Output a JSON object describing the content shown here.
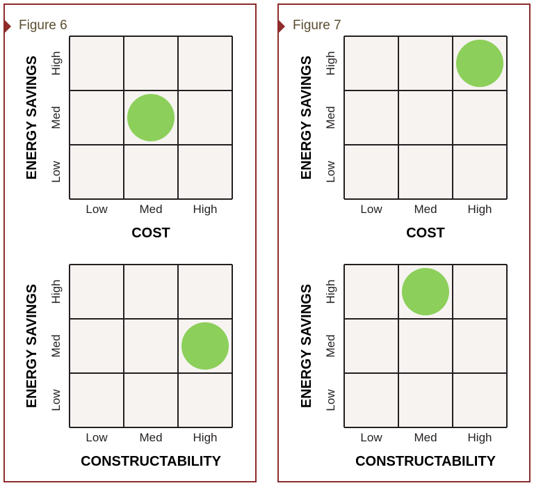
{
  "levels": [
    "Low",
    "Med",
    "High"
  ],
  "colors": {
    "border": "#8e2b2b",
    "grid_fill": "#f6f3f1",
    "grid_line": "#231f20",
    "dot": "#8ccf5a",
    "title": "#5a4d2f"
  },
  "figures": [
    {
      "title": "Figure 6"
    },
    {
      "title": "Figure 7"
    }
  ],
  "chart_data": [
    {
      "type": "scatter",
      "figure": "Figure 6",
      "xlabel": "COST",
      "ylabel": "ENERGY SAVINGS",
      "x_categories": [
        "Low",
        "Med",
        "High"
      ],
      "y_categories": [
        "Low",
        "Med",
        "High"
      ],
      "points": [
        {
          "x": "Med",
          "y": "Med"
        }
      ]
    },
    {
      "type": "scatter",
      "figure": "Figure 6",
      "xlabel": "CONSTRUCTABILITY",
      "ylabel": "ENERGY SAVINGS",
      "x_categories": [
        "Low",
        "Med",
        "High"
      ],
      "y_categories": [
        "Low",
        "Med",
        "High"
      ],
      "points": [
        {
          "x": "High",
          "y": "Med"
        }
      ]
    },
    {
      "type": "scatter",
      "figure": "Figure 7",
      "xlabel": "COST",
      "ylabel": "ENERGY SAVINGS",
      "x_categories": [
        "Low",
        "Med",
        "High"
      ],
      "y_categories": [
        "Low",
        "Med",
        "High"
      ],
      "points": [
        {
          "x": "High",
          "y": "High"
        }
      ]
    },
    {
      "type": "scatter",
      "figure": "Figure 7",
      "xlabel": "CONSTRUCTABILITY",
      "ylabel": "ENERGY SAVINGS",
      "x_categories": [
        "Low",
        "Med",
        "High"
      ],
      "y_categories": [
        "Low",
        "Med",
        "High"
      ],
      "points": [
        {
          "x": "Med",
          "y": "High"
        }
      ]
    }
  ]
}
